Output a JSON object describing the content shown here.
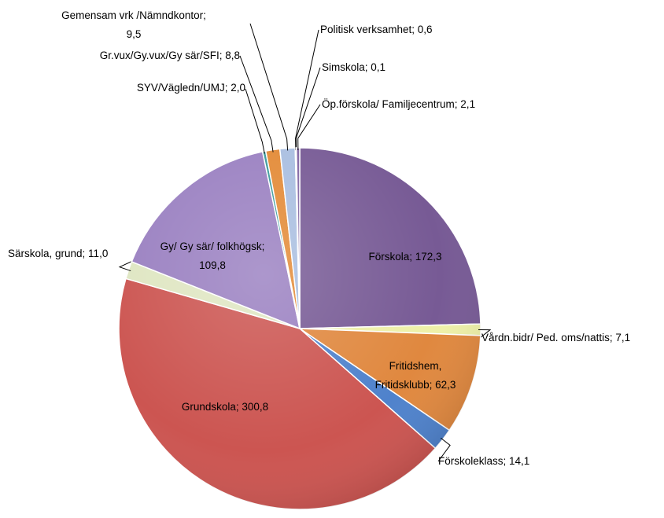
{
  "chart_data": {
    "type": "pie",
    "values": [
      172.3,
      7.1,
      62.3,
      14.1,
      300.8,
      11.0,
      109.8,
      2.0,
      8.8,
      9.5,
      0.6,
      0.1,
      2.1
    ],
    "value_labels": [
      "Förskola; 172,3",
      "Vårdn.bidr/ Ped. oms/nattis; 7,1",
      "Fritidshem,\nFritidsklubb; 62,3",
      "Förskoleklass; 14,1",
      "Grundskola; 300,8",
      "Särskola, grund; 11,0",
      "Gy/ Gy sär/ folkhögsk;\n109,8",
      "SYV/Vägledn/UMJ; 2,0",
      "Gr.vux/Gy.vux/Gy sär/SFI; 8,8",
      "Gemensam vrk /Nämndkontor;\n9,5",
      "Politisk verksamhet; 0,6",
      "Simskola; 0,1",
      "Öp.förskola/ Familjecentrum; 2,1"
    ],
    "colors": [
      "#775a95",
      "#eef0a8",
      "#e0883f",
      "#4f82cc",
      "#cc5551",
      "#dfe6c2",
      "#9a80c1",
      "#3a9a9c",
      "#e38a36",
      "#a9bee0",
      "#c0504d",
      "#9bbb59",
      "#8064a2"
    ]
  }
}
